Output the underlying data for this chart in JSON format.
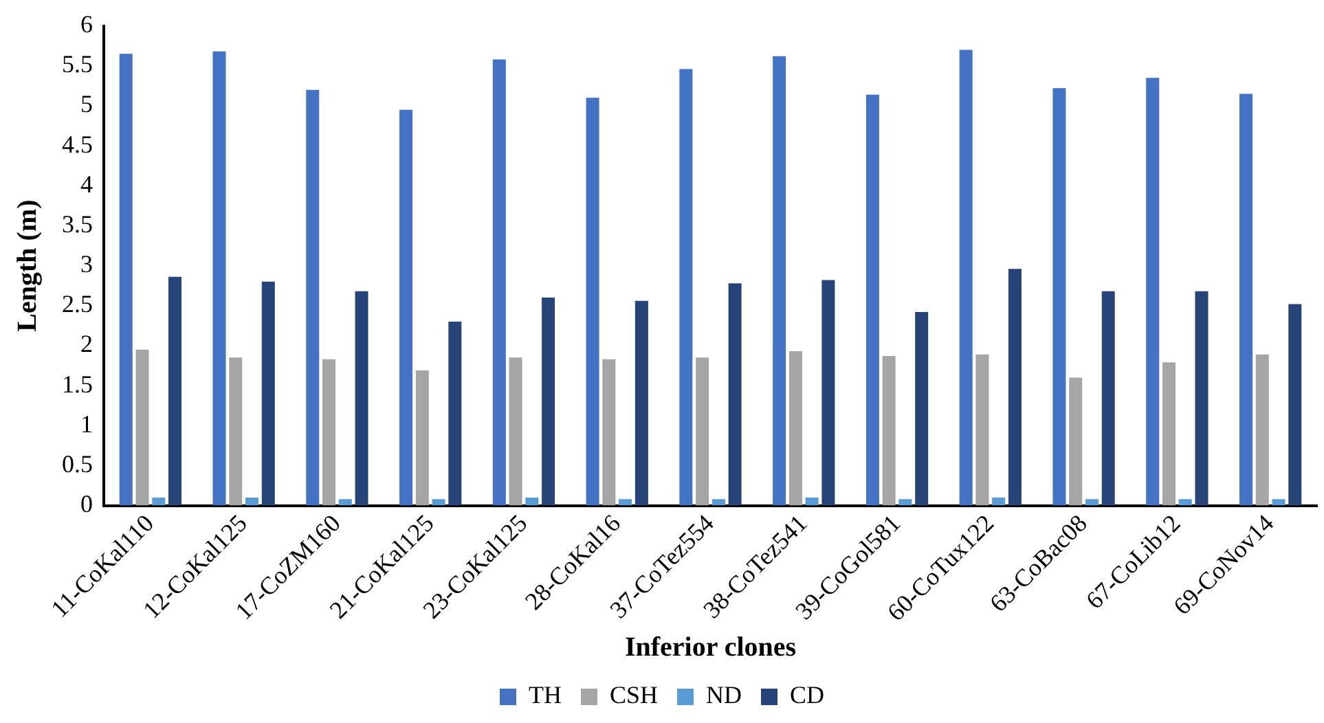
{
  "chart_data": {
    "type": "bar",
    "xlabel": "Inferior clones",
    "ylabel": "Length (m)",
    "categories": [
      "11-CoKal110",
      "12-CoKal125",
      "17-CoZM160",
      "21-CoKal125",
      "23-CoKal125",
      "28-CoKal16",
      "37-CoTez554",
      "38-CoTez541",
      "39-CoGol581",
      "60-CoTux122",
      "63-CoBac08",
      "67-CoLib12",
      "69-CoNov14"
    ],
    "series": [
      {
        "name": "TH",
        "color": "#4472c4",
        "values": [
          5.65,
          5.68,
          5.2,
          4.95,
          5.58,
          5.1,
          5.46,
          5.62,
          5.14,
          5.7,
          5.22,
          5.35,
          5.15
        ]
      },
      {
        "name": "CSH",
        "color": "#a5a5a5",
        "values": [
          1.95,
          1.85,
          1.83,
          1.69,
          1.85,
          1.83,
          1.85,
          1.93,
          1.87,
          1.89,
          1.6,
          1.79,
          1.89
        ]
      },
      {
        "name": "ND",
        "color": "#5b9bd5",
        "values": [
          0.1,
          0.1,
          0.08,
          0.08,
          0.1,
          0.08,
          0.08,
          0.1,
          0.08,
          0.1,
          0.08,
          0.08,
          0.08
        ]
      },
      {
        "name": "CD",
        "color": "#264478",
        "values": [
          2.86,
          2.8,
          2.68,
          2.3,
          2.6,
          2.56,
          2.78,
          2.82,
          2.42,
          2.96,
          2.68,
          2.68,
          2.52
        ]
      }
    ],
    "ylim": [
      0,
      6
    ],
    "yticks": [
      0,
      0.5,
      1,
      1.5,
      2,
      2.5,
      3,
      3.5,
      4,
      4.5,
      5,
      5.5,
      6
    ],
    "grid": false,
    "legend": "bottom"
  }
}
